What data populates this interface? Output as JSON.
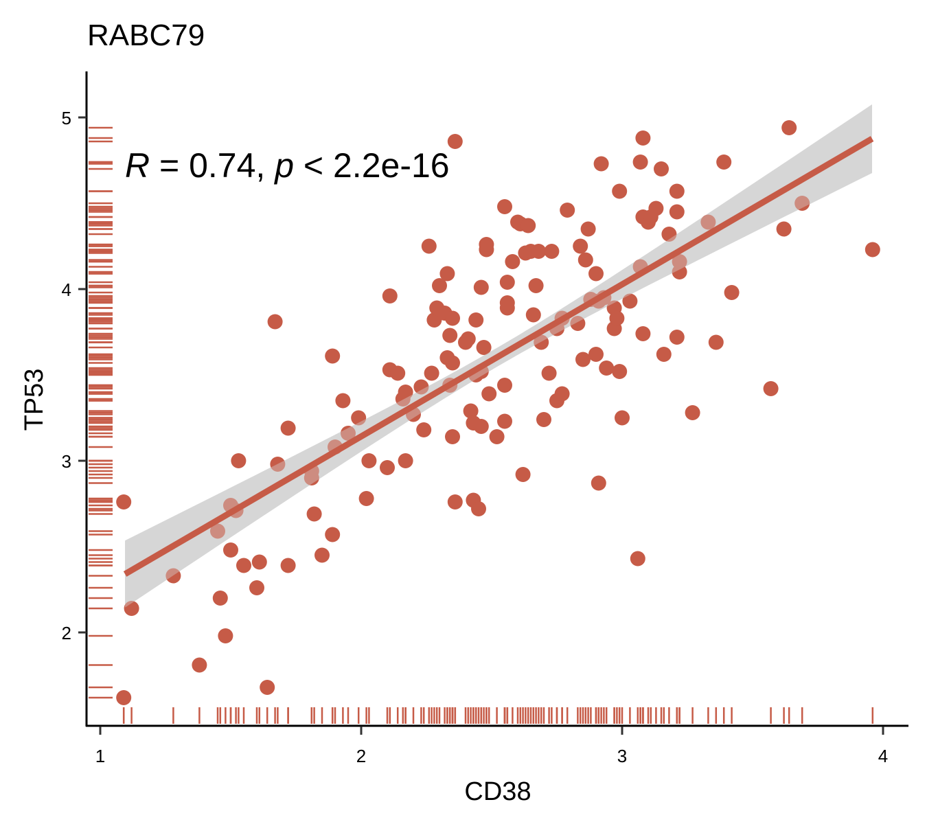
{
  "chart_data": {
    "type": "scatter",
    "title": "RABC79",
    "xlabel": "CD38",
    "ylabel": "TP53",
    "xlim": [
      0.95,
      4.1
    ],
    "ylim": [
      1.45,
      5.27
    ],
    "xticks": [
      1,
      2,
      3,
      4
    ],
    "yticks": [
      2,
      3,
      4,
      5
    ],
    "grid": false,
    "legend": "none",
    "point_color": "#C65B47",
    "line_color": "#C65B47",
    "band_color": "#D6D6D6",
    "annotation": {
      "R_symbol": "R",
      "r_text": " = 0.74, ",
      "p_symbol": "p",
      "p_text": " < 2.2e-16"
    },
    "regression": {
      "x": [
        1.095,
        3.958
      ],
      "y": [
        2.34,
        4.876
      ],
      "ci_lower": [
        2.13,
        4.69
      ],
      "ci_upper": [
        2.52,
        5.09
      ],
      "ci_mid_halfwidth": 0.055
    },
    "points": [
      {
        "x": 1.09,
        "y": 2.76
      },
      {
        "x": 1.12,
        "y": 2.14
      },
      {
        "x": 1.09,
        "y": 1.62
      },
      {
        "x": 1.28,
        "y": 2.33
      },
      {
        "x": 1.38,
        "y": 1.81
      },
      {
        "x": 1.45,
        "y": 2.59
      },
      {
        "x": 1.46,
        "y": 2.2
      },
      {
        "x": 1.48,
        "y": 1.98
      },
      {
        "x": 1.5,
        "y": 2.48
      },
      {
        "x": 1.5,
        "y": 2.74
      },
      {
        "x": 1.52,
        "y": 2.71
      },
      {
        "x": 1.53,
        "y": 3.0
      },
      {
        "x": 1.55,
        "y": 2.39
      },
      {
        "x": 1.6,
        "y": 2.26
      },
      {
        "x": 1.61,
        "y": 2.41
      },
      {
        "x": 1.64,
        "y": 1.68
      },
      {
        "x": 1.67,
        "y": 3.81
      },
      {
        "x": 1.68,
        "y": 2.98
      },
      {
        "x": 1.72,
        "y": 3.19
      },
      {
        "x": 1.72,
        "y": 2.39
      },
      {
        "x": 1.81,
        "y": 2.94
      },
      {
        "x": 1.81,
        "y": 2.9
      },
      {
        "x": 1.82,
        "y": 2.69
      },
      {
        "x": 1.85,
        "y": 2.45
      },
      {
        "x": 1.89,
        "y": 3.61
      },
      {
        "x": 1.89,
        "y": 2.57
      },
      {
        "x": 1.9,
        "y": 3.08
      },
      {
        "x": 1.93,
        "y": 3.35
      },
      {
        "x": 1.95,
        "y": 3.16
      },
      {
        "x": 1.99,
        "y": 3.25
      },
      {
        "x": 2.02,
        "y": 2.78
      },
      {
        "x": 2.03,
        "y": 3.0
      },
      {
        "x": 2.1,
        "y": 2.96
      },
      {
        "x": 2.11,
        "y": 3.96
      },
      {
        "x": 2.11,
        "y": 3.53
      },
      {
        "x": 2.14,
        "y": 3.51
      },
      {
        "x": 2.16,
        "y": 3.36
      },
      {
        "x": 2.17,
        "y": 3.4
      },
      {
        "x": 2.17,
        "y": 3.0
      },
      {
        "x": 2.2,
        "y": 3.27
      },
      {
        "x": 2.23,
        "y": 3.43
      },
      {
        "x": 2.24,
        "y": 3.18
      },
      {
        "x": 2.26,
        "y": 4.25
      },
      {
        "x": 2.27,
        "y": 3.51
      },
      {
        "x": 2.28,
        "y": 3.82
      },
      {
        "x": 2.29,
        "y": 3.89
      },
      {
        "x": 2.3,
        "y": 4.02
      },
      {
        "x": 2.32,
        "y": 3.86
      },
      {
        "x": 2.33,
        "y": 4.09
      },
      {
        "x": 2.33,
        "y": 3.6
      },
      {
        "x": 2.34,
        "y": 3.73
      },
      {
        "x": 2.34,
        "y": 3.44
      },
      {
        "x": 2.35,
        "y": 3.14
      },
      {
        "x": 2.35,
        "y": 3.83
      },
      {
        "x": 2.35,
        "y": 3.57
      },
      {
        "x": 2.36,
        "y": 2.76
      },
      {
        "x": 2.36,
        "y": 4.86
      },
      {
        "x": 2.4,
        "y": 3.69
      },
      {
        "x": 2.41,
        "y": 3.71
      },
      {
        "x": 2.42,
        "y": 3.29
      },
      {
        "x": 2.43,
        "y": 3.22
      },
      {
        "x": 2.43,
        "y": 2.77
      },
      {
        "x": 2.44,
        "y": 3.82
      },
      {
        "x": 2.44,
        "y": 3.5
      },
      {
        "x": 2.45,
        "y": 2.72
      },
      {
        "x": 2.46,
        "y": 3.52
      },
      {
        "x": 2.46,
        "y": 4.01
      },
      {
        "x": 2.46,
        "y": 3.2
      },
      {
        "x": 2.47,
        "y": 3.66
      },
      {
        "x": 2.48,
        "y": 4.23
      },
      {
        "x": 2.48,
        "y": 4.26
      },
      {
        "x": 2.49,
        "y": 3.39
      },
      {
        "x": 2.52,
        "y": 3.14
      },
      {
        "x": 2.55,
        "y": 4.48
      },
      {
        "x": 2.55,
        "y": 3.44
      },
      {
        "x": 2.55,
        "y": 3.23
      },
      {
        "x": 2.56,
        "y": 4.04
      },
      {
        "x": 2.56,
        "y": 3.89
      },
      {
        "x": 2.56,
        "y": 3.92
      },
      {
        "x": 2.58,
        "y": 4.16
      },
      {
        "x": 2.6,
        "y": 4.39
      },
      {
        "x": 2.61,
        "y": 4.38
      },
      {
        "x": 2.62,
        "y": 2.92
      },
      {
        "x": 2.63,
        "y": 4.21
      },
      {
        "x": 2.64,
        "y": 4.37
      },
      {
        "x": 2.65,
        "y": 4.22
      },
      {
        "x": 2.66,
        "y": 3.85
      },
      {
        "x": 2.67,
        "y": 4.02
      },
      {
        "x": 2.68,
        "y": 4.22
      },
      {
        "x": 2.69,
        "y": 3.69
      },
      {
        "x": 2.7,
        "y": 3.24
      },
      {
        "x": 2.72,
        "y": 3.51
      },
      {
        "x": 2.73,
        "y": 4.22
      },
      {
        "x": 2.75,
        "y": 3.77
      },
      {
        "x": 2.75,
        "y": 3.35
      },
      {
        "x": 2.77,
        "y": 3.39
      },
      {
        "x": 2.77,
        "y": 3.83
      },
      {
        "x": 2.79,
        "y": 4.46
      },
      {
        "x": 2.83,
        "y": 3.8
      },
      {
        "x": 2.84,
        "y": 4.25
      },
      {
        "x": 2.85,
        "y": 3.59
      },
      {
        "x": 2.86,
        "y": 4.17
      },
      {
        "x": 2.87,
        "y": 4.35
      },
      {
        "x": 2.88,
        "y": 3.94
      },
      {
        "x": 2.9,
        "y": 4.09
      },
      {
        "x": 2.9,
        "y": 3.62
      },
      {
        "x": 2.91,
        "y": 2.87
      },
      {
        "x": 2.91,
        "y": 3.93
      },
      {
        "x": 2.92,
        "y": 4.73
      },
      {
        "x": 2.93,
        "y": 3.95
      },
      {
        "x": 2.94,
        "y": 3.54
      },
      {
        "x": 2.97,
        "y": 3.89
      },
      {
        "x": 2.97,
        "y": 3.77
      },
      {
        "x": 2.98,
        "y": 3.83
      },
      {
        "x": 2.99,
        "y": 4.57
      },
      {
        "x": 2.99,
        "y": 3.52
      },
      {
        "x": 3.0,
        "y": 3.25
      },
      {
        "x": 3.03,
        "y": 3.93
      },
      {
        "x": 3.06,
        "y": 2.43
      },
      {
        "x": 3.07,
        "y": 4.13
      },
      {
        "x": 3.07,
        "y": 4.74
      },
      {
        "x": 3.08,
        "y": 4.88
      },
      {
        "x": 3.08,
        "y": 4.42
      },
      {
        "x": 3.08,
        "y": 3.74
      },
      {
        "x": 3.1,
        "y": 4.39
      },
      {
        "x": 3.11,
        "y": 4.42
      },
      {
        "x": 3.13,
        "y": 4.47
      },
      {
        "x": 3.15,
        "y": 4.7
      },
      {
        "x": 3.16,
        "y": 3.62
      },
      {
        "x": 3.18,
        "y": 4.32
      },
      {
        "x": 3.21,
        "y": 4.57
      },
      {
        "x": 3.21,
        "y": 4.45
      },
      {
        "x": 3.21,
        "y": 3.72
      },
      {
        "x": 3.22,
        "y": 4.16
      },
      {
        "x": 3.22,
        "y": 4.1
      },
      {
        "x": 3.27,
        "y": 3.28
      },
      {
        "x": 3.33,
        "y": 4.39
      },
      {
        "x": 3.36,
        "y": 3.69
      },
      {
        "x": 3.39,
        "y": 4.74
      },
      {
        "x": 3.42,
        "y": 3.98
      },
      {
        "x": 3.57,
        "y": 3.42
      },
      {
        "x": 3.62,
        "y": 4.35
      },
      {
        "x": 3.64,
        "y": 4.94
      },
      {
        "x": 3.69,
        "y": 4.5
      },
      {
        "x": 3.96,
        "y": 4.23
      }
    ]
  }
}
